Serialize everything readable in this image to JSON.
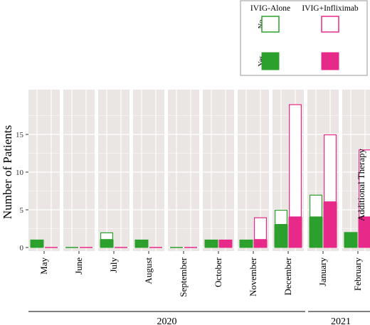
{
  "chart_data": {
    "type": "bar",
    "layout": "stacked",
    "ylabel": "Number of Patients",
    "facet_strip_label": "Additional Therapy",
    "ylim": [
      0,
      20
    ],
    "yticks": [
      0,
      5,
      10,
      15
    ],
    "grid": true,
    "legend": {
      "placement": "top-right",
      "columns": [
        "IVIG-Alone",
        "IVIG+Infliximab"
      ],
      "rows": [
        "No",
        "Yes"
      ]
    },
    "groups": [
      "IVIG-Alone",
      "IVIG+Infliximab"
    ],
    "colors": {
      "IVIG-Alone": "#2ca02c",
      "IVIG+Infliximab": "#e7298a",
      "panel_bg": "#ebe6e3"
    },
    "categories": [
      "May",
      "June",
      "July",
      "August",
      "September",
      "October",
      "November",
      "December",
      "January",
      "February"
    ],
    "years": [
      {
        "label": "2020",
        "months": [
          "May",
          "June",
          "July",
          "August",
          "September",
          "October",
          "November",
          "December"
        ]
      },
      {
        "label": "2021",
        "months": [
          "January",
          "February"
        ]
      }
    ],
    "series": [
      {
        "group": "IVIG-Alone",
        "status": "Yes",
        "values": [
          1,
          0,
          1,
          1,
          0,
          1,
          1,
          3,
          4,
          2
        ]
      },
      {
        "group": "IVIG-Alone",
        "status": "No",
        "values": [
          0,
          0,
          1,
          0,
          0,
          0,
          0,
          2,
          3,
          0
        ]
      },
      {
        "group": "IVIG+Infliximab",
        "status": "Yes",
        "values": [
          0,
          0,
          0,
          0,
          0,
          1,
          1,
          4,
          6,
          4
        ]
      },
      {
        "group": "IVIG+Infliximab",
        "status": "No",
        "values": [
          0,
          0,
          0,
          0,
          0,
          0,
          3,
          15,
          9,
          9
        ]
      }
    ]
  }
}
